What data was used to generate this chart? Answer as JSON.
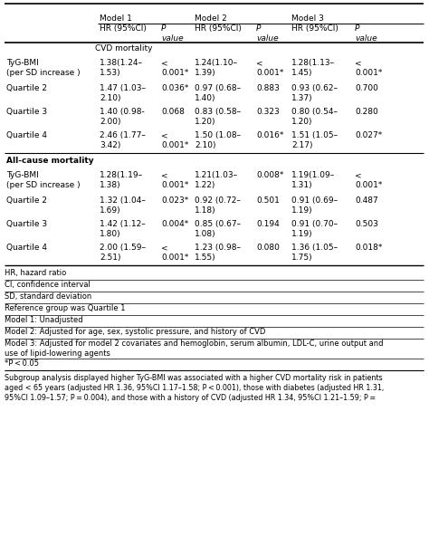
{
  "rows": [
    {
      "label": "TyG-BMI\n(per SD increase )",
      "m1_hr": "1.38(1.24–\n1.53)",
      "m1_p": "<\n0.001*",
      "m2_hr": "1.24(1.10–\n1.39)",
      "m2_p": "<\n0.001*",
      "m3_hr": "1.28(1.13–\n1.45)",
      "m3_p": "<\n0.001*",
      "section": 1,
      "two_line": true
    },
    {
      "label": "Quartile 2",
      "m1_hr": "1.47 (1.03–\n2.10)",
      "m1_p": "0.036*",
      "m2_hr": "0.97 (0.68–\n1.40)",
      "m2_p": "0.883",
      "m3_hr": "0.93 (0.62–\n1.37)",
      "m3_p": "0.700",
      "section": 1,
      "two_line": false
    },
    {
      "label": "Quartile 3",
      "m1_hr": "1.40 (0.98-\n2.00)",
      "m1_p": "0.068",
      "m2_hr": "0.83 (0.58–\n1.20)",
      "m2_p": "0.323",
      "m3_hr": "0.80 (0.54–\n1.20)",
      "m3_p": "0.280",
      "section": 1,
      "two_line": false
    },
    {
      "label": "Quartile 4",
      "m1_hr": "2.46 (1.77–\n3.42)",
      "m1_p": "<\n0.001*",
      "m2_hr": "1.50 (1.08–\n2.10)",
      "m2_p": "0.016*",
      "m3_hr": "1.51 (1.05–\n2.17)",
      "m3_p": "0.027*",
      "section": 1,
      "two_line": false
    },
    {
      "label": "TyG-BMI\n(per SD increase )",
      "m1_hr": "1.28(1.19–\n1.38)",
      "m1_p": "<\n0.001*",
      "m2_hr": "1.21(1.03–\n1.22)",
      "m2_p": "0.008*",
      "m3_hr": "1.19(1.09–\n1.31)",
      "m3_p": "<\n0.001*",
      "section": 2,
      "two_line": true
    },
    {
      "label": "Quartile 2",
      "m1_hr": "1.32 (1.04–\n1.69)",
      "m1_p": "0.023*",
      "m2_hr": "0.92 (0.72–\n1.18)",
      "m2_p": "0.501",
      "m3_hr": "0.91 (0.69–\n1.19)",
      "m3_p": "0.487",
      "section": 2,
      "two_line": false
    },
    {
      "label": "Quartile 3",
      "m1_hr": "1.42 (1.12–\n1.80)",
      "m1_p": "0.004*",
      "m2_hr": "0.85 (0.67–\n1.08)",
      "m2_p": "0.194",
      "m3_hr": "0.91 (0.70–\n1.19)",
      "m3_p": "0.503",
      "section": 2,
      "two_line": false
    },
    {
      "label": "Quartile 4",
      "m1_hr": "2.00 (1.59–\n2.51)",
      "m1_p": "<\n0.001*",
      "m2_hr": "1.23 (0.98–\n1.55)",
      "m2_p": "0.080",
      "m3_hr": "1.36 (1.05–\n1.75)",
      "m3_p": "0.018*",
      "section": 2,
      "two_line": false
    }
  ],
  "footnotes": [
    "HR, hazard ratio",
    "CI, confidence interval",
    "SD, standard deviation",
    "Reference group was Quartile 1",
    "Model 1: Unadjusted",
    "Model 2: Adjusted for age, sex, systolic pressure, and history of CVD",
    "Model 3: Adjusted for model 2 covariates and hemoglobin, serum albumin, LDL-C, urine output and\nuse of lipid-lowering agents",
    "*P < 0.05"
  ],
  "subgroup_text": "Subgroup analysis displayed higher TyG-BMI was associated with a higher CVD mortality risk in patients\naged < 65 years (adjusted HR 1.36, 95%CI 1.17–1.58; P < 0.001), those with diabetes (adjusted HR 1.31,\n95%CI 1.09–1.57; P = 0.004), and those with a history of CVD (adjusted HR 1.34, 95%CI 1.21–1.59; P =",
  "bg_color": "#ffffff",
  "text_color": "#000000",
  "line_color": "#000000",
  "font_size": 6.5,
  "font_size_small": 6.0,
  "font_size_sub": 5.8
}
